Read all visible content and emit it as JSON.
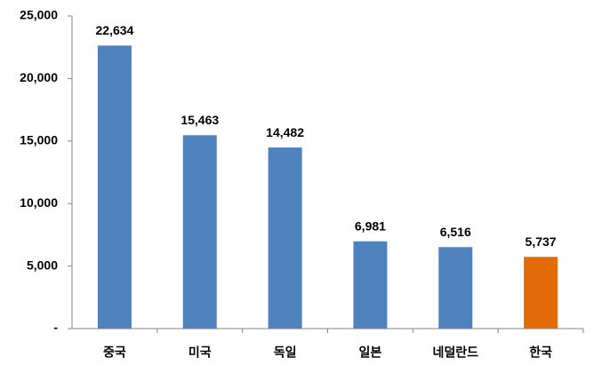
{
  "chart_data": {
    "type": "bar",
    "categories": [
      "중국",
      "미국",
      "독일",
      "일본",
      "네덜란드",
      "한국"
    ],
    "values": [
      22634,
      15463,
      14482,
      6981,
      6516,
      5737
    ],
    "value_labels": [
      "22,634",
      "15,463",
      "14,482",
      "6,981",
      "6,516",
      "5,737"
    ],
    "colors": [
      "#4f81bd",
      "#4f81bd",
      "#4f81bd",
      "#4f81bd",
      "#4f81bd",
      "#e36c09"
    ],
    "ylim": [
      0,
      25000
    ],
    "yticks": [
      {
        "value": 0,
        "label": "-"
      },
      {
        "value": 5000,
        "label": "5,000"
      },
      {
        "value": 10000,
        "label": "10,000"
      },
      {
        "value": 15000,
        "label": "15,000"
      },
      {
        "value": 20000,
        "label": "20,000"
      },
      {
        "value": 25000,
        "label": "25,000"
      }
    ],
    "grid": false
  }
}
